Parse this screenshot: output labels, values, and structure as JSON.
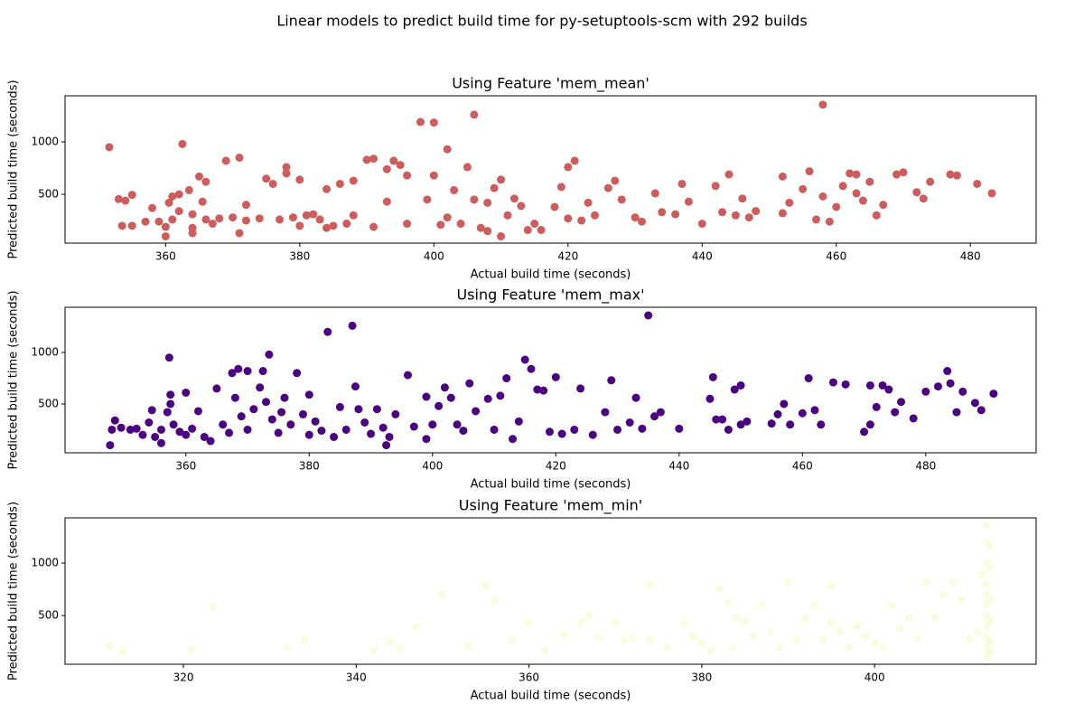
{
  "title": "Linear models to predict build time for py-setuptools-scm with 292 builds",
  "chart_data": [
    {
      "type": "scatter",
      "title": "Using Feature 'mem_mean'",
      "xlabel": "Actual build time (seconds)",
      "ylabel": "Predicted build time (seconds)",
      "color": "#cd5c5c",
      "xlim": [
        345,
        489.8
      ],
      "ylim": [
        35,
        1440
      ],
      "xticks": [
        360,
        380,
        400,
        420,
        440,
        460,
        480
      ],
      "yticks": [
        500,
        1000
      ],
      "x": [
        351.6,
        353,
        353.5,
        354,
        355,
        355,
        357,
        358,
        359,
        360,
        360,
        360.5,
        361,
        361,
        362,
        362,
        362.5,
        363.5,
        364,
        364,
        364,
        365,
        365.5,
        366,
        366,
        367,
        368,
        369,
        370,
        371,
        371,
        372,
        372,
        374,
        375,
        376,
        377,
        378,
        378,
        379,
        380,
        380,
        381,
        382,
        383,
        384,
        384,
        385,
        386,
        387,
        388,
        388,
        390,
        391,
        391,
        393,
        393,
        394,
        395,
        396,
        396,
        398,
        399,
        400,
        400,
        401,
        402,
        402,
        403,
        404,
        405,
        406,
        406,
        407,
        408,
        408,
        409,
        410,
        410,
        411,
        412,
        413,
        414,
        415,
        416,
        418,
        419,
        420,
        420,
        421,
        422,
        423,
        424,
        426,
        427,
        428,
        430,
        431,
        433,
        434,
        436,
        437,
        438,
        440,
        442,
        443,
        444,
        445,
        446,
        447,
        448,
        452,
        452,
        453,
        455,
        456,
        457,
        458,
        458,
        459,
        460,
        461,
        462,
        463,
        463,
        464,
        465,
        466,
        467,
        469,
        470,
        472,
        473,
        474,
        477,
        478,
        481,
        483.2
      ],
      "values": [
        950,
        455,
        200,
        440,
        495,
        200,
        240,
        370,
        240,
        100,
        190,
        420,
        480,
        260,
        500,
        340,
        980,
        540,
        180,
        130,
        310,
        670,
        430,
        620,
        260,
        220,
        270,
        820,
        280,
        850,
        130,
        250,
        400,
        270,
        650,
        600,
        260,
        760,
        700,
        280,
        640,
        200,
        300,
        310,
        260,
        550,
        180,
        200,
        600,
        220,
        300,
        630,
        830,
        840,
        190,
        740,
        430,
        820,
        780,
        220,
        680,
        1190,
        450,
        680,
        1185,
        210,
        930,
        280,
        540,
        220,
        760,
        1260,
        450,
        180,
        150,
        420,
        560,
        100,
        640,
        300,
        460,
        390,
        160,
        220,
        160,
        380,
        570,
        760,
        270,
        820,
        250,
        420,
        300,
        560,
        630,
        450,
        280,
        240,
        510,
        330,
        310,
        600,
        430,
        220,
        580,
        330,
        690,
        300,
        460,
        280,
        340,
        670,
        320,
        420,
        550,
        720,
        260,
        1355,
        480,
        240,
        380,
        580,
        700,
        690,
        510,
        440,
        620,
        300,
        400,
        690,
        710,
        520,
        460,
        620,
        690,
        680,
        600,
        510
      ]
    },
    {
      "type": "scatter",
      "title": "Using Feature 'mem_max'",
      "xlabel": "Actual build time (seconds)",
      "ylabel": "Predicted build time (seconds)",
      "color": "#4b0082",
      "xlim": [
        340.4,
        497.9
      ],
      "ylim": [
        26,
        1439
      ],
      "xticks": [
        360,
        380,
        400,
        420,
        440,
        460,
        480
      ],
      "yticks": [
        500,
        1000
      ],
      "x": [
        347.7,
        348,
        348.5,
        349.5,
        351,
        352,
        353,
        354,
        354.5,
        355,
        356,
        356,
        357,
        357.3,
        357.5,
        357.5,
        358,
        359,
        360,
        360,
        361,
        362,
        363,
        364,
        365,
        366,
        367,
        367.5,
        368,
        368.5,
        369,
        370,
        370,
        371,
        372,
        372.5,
        373,
        373.5,
        374,
        375,
        375.5,
        376,
        377,
        378,
        379,
        380,
        380,
        381,
        382,
        383,
        384,
        385,
        386,
        387,
        387.5,
        388,
        389,
        390,
        391,
        392,
        392.5,
        393,
        394,
        396,
        397,
        399,
        399,
        400,
        401,
        402,
        403,
        404,
        405,
        406,
        407,
        409,
        410,
        411,
        412,
        413,
        414,
        415,
        416,
        417,
        418,
        419,
        420,
        421,
        423,
        424,
        426,
        428,
        429,
        430,
        432,
        433,
        434,
        435,
        436,
        437,
        440,
        445,
        445.5,
        446,
        447,
        448,
        449,
        450,
        450,
        451,
        455,
        456,
        457,
        458,
        460,
        461,
        462,
        463,
        465,
        467,
        470,
        471,
        471,
        472,
        473,
        474,
        475,
        476,
        478,
        480,
        482,
        483.5,
        484,
        485,
        486,
        488,
        489,
        491
      ],
      "values": [
        100,
        250,
        340,
        270,
        250,
        260,
        200,
        320,
        440,
        180,
        120,
        250,
        420,
        950,
        590,
        500,
        300,
        230,
        610,
        200,
        260,
        430,
        180,
        140,
        650,
        300,
        220,
        800,
        560,
        840,
        380,
        820,
        250,
        450,
        660,
        820,
        520,
        980,
        350,
        220,
        420,
        560,
        300,
        800,
        400,
        590,
        200,
        330,
        240,
        1200,
        180,
        470,
        250,
        1260,
        670,
        450,
        320,
        210,
        450,
        270,
        100,
        180,
        400,
        780,
        280,
        570,
        160,
        300,
        480,
        660,
        560,
        300,
        240,
        700,
        430,
        550,
        250,
        580,
        750,
        160,
        330,
        930,
        840,
        640,
        630,
        230,
        760,
        210,
        250,
        650,
        200,
        420,
        730,
        250,
        320,
        560,
        260,
        1360,
        380,
        420,
        260,
        550,
        760,
        350,
        350,
        250,
        640,
        300,
        680,
        330,
        310,
        400,
        500,
        300,
        410,
        750,
        440,
        300,
        710,
        690,
        230,
        300,
        680,
        470,
        680,
        640,
        420,
        520,
        360,
        620,
        670,
        820,
        700,
        420,
        620,
        510,
        440,
        600
      ]
    },
    {
      "type": "scatter",
      "title": "Using Feature 'mem_min'",
      "xlabel": "Actual build time (seconds)",
      "ylabel": "Predicted build time (seconds)",
      "color": "#f8fde2",
      "xlim": [
        306.3,
        418.7
      ],
      "ylim": [
        35,
        1431
      ],
      "xticks": [
        320,
        340,
        360,
        380,
        400
      ],
      "yticks": [
        500,
        1000
      ],
      "x": [
        311.5,
        313,
        321,
        323.5,
        332,
        334,
        342,
        344,
        345,
        347,
        350,
        353,
        355,
        356,
        358,
        360,
        362,
        364,
        366,
        367,
        368,
        370,
        371,
        372,
        374,
        374,
        376,
        378,
        379,
        380,
        381,
        382,
        383,
        383.5,
        384,
        385,
        386,
        387,
        388,
        389,
        390,
        391,
        392,
        393,
        394,
        395,
        395,
        396,
        397,
        398,
        399,
        400,
        401,
        402,
        403,
        404,
        405,
        406,
        407,
        408,
        409,
        410,
        411,
        412,
        412.5,
        413,
        413,
        413,
        413,
        413,
        413,
        413,
        413,
        413,
        413,
        413,
        413.3,
        413.3,
        413.3,
        413.3,
        413.3,
        413.3
      ],
      "values": [
        210,
        160,
        170,
        590,
        200,
        260,
        170,
        250,
        180,
        390,
        700,
        210,
        780,
        640,
        260,
        430,
        170,
        320,
        440,
        500,
        290,
        430,
        260,
        280,
        800,
        270,
        200,
        420,
        300,
        230,
        170,
        760,
        620,
        190,
        480,
        440,
        310,
        600,
        340,
        190,
        820,
        270,
        470,
        600,
        260,
        430,
        780,
        350,
        200,
        400,
        310,
        240,
        190,
        600,
        380,
        480,
        280,
        820,
        480,
        700,
        820,
        650,
        280,
        350,
        900,
        1360,
        1200,
        1000,
        800,
        700,
        600,
        500,
        400,
        300,
        200,
        100,
        1150,
        950,
        650,
        450,
        250,
        150
      ]
    }
  ]
}
